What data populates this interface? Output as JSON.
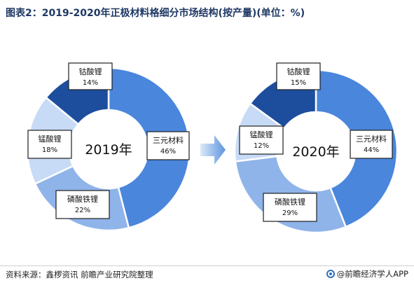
{
  "title": "图表2：2019-2020年正极材料格细分市场结构(按产量)(单位：%)",
  "source": "资料来源：鑫椤资讯 前瞻产业研究院整理",
  "brand": "@前瞻经济学人APP",
  "colors": {
    "ncm": "#4a86dc",
    "lfp": "#8fb4ea",
    "lmo": "#c7dbf7",
    "lco": "#1d4e9e"
  },
  "chart_data": [
    {
      "type": "pie",
      "center_label": "2019年",
      "slices": [
        {
          "name": "三元材料",
          "value": 46,
          "label": "46%",
          "color": "#4a86dc"
        },
        {
          "name": "磷酸铁锂",
          "value": 22,
          "label": "22%",
          "color": "#8fb4ea"
        },
        {
          "name": "锰酸锂",
          "value": 18,
          "label": "18%",
          "color": "#c7dbf7"
        },
        {
          "name": "钴酸锂",
          "value": 14,
          "label": "14%",
          "color": "#1d4e9e"
        }
      ]
    },
    {
      "type": "pie",
      "center_label": "2020年",
      "slices": [
        {
          "name": "三元材料",
          "value": 44,
          "label": "44%",
          "color": "#4a86dc"
        },
        {
          "name": "磷酸铁锂",
          "value": 29,
          "label": "29%",
          "color": "#8fb4ea"
        },
        {
          "name": "锰酸锂",
          "value": 12,
          "label": "12%",
          "color": "#c7dbf7"
        },
        {
          "name": "钴酸锂",
          "value": 15,
          "label": "15%",
          "color": "#1d4e9e"
        }
      ]
    }
  ]
}
